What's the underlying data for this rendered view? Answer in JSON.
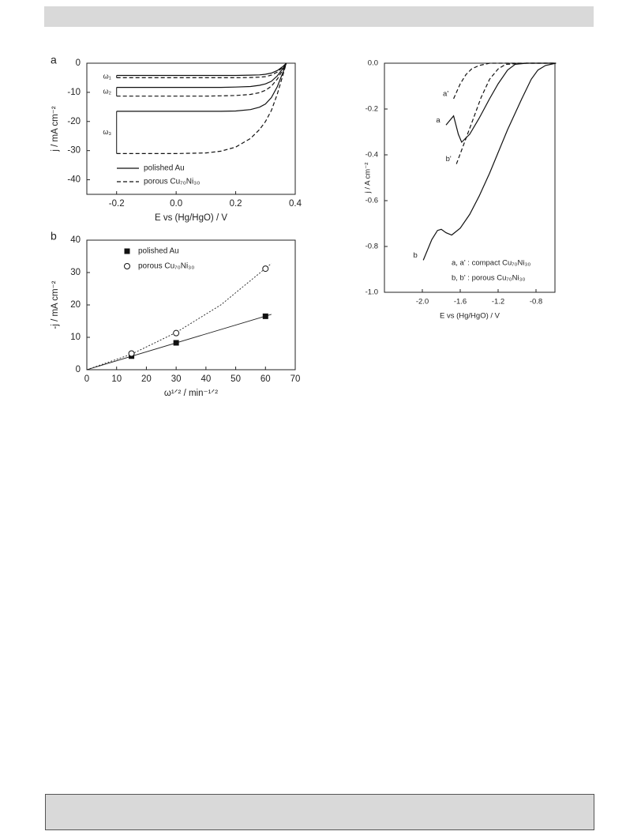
{
  "chart_data": [
    {
      "type": "line",
      "panel": "a",
      "xlabel": "E vs (Hg/HgO) / V",
      "ylabel": "j / mA cm⁻²",
      "xlim": [
        -0.3,
        0.4
      ],
      "xticks": [
        -0.2,
        {
          "value": 0,
          "label": "0.0"
        },
        0.2,
        0.4
      ],
      "ylim": [
        -45,
        0
      ],
      "yticks": [
        0,
        -10,
        -20,
        -30,
        -40
      ],
      "legend": [
        {
          "label": "polished Au",
          "dash": "solid"
        },
        {
          "label": "porous Cu₇₀Ni₃₀",
          "dash": "dashed"
        }
      ],
      "rotation_labels": [
        "ω₁",
        "ω₂",
        "ω₃"
      ],
      "x": [
        -0.2,
        -0.1,
        0.0,
        0.1,
        0.15,
        0.2,
        0.25,
        0.28,
        0.3,
        0.32,
        0.34,
        0.36,
        0.37
      ],
      "series": [
        {
          "legend": 0,
          "values": [
            -4.2,
            -4.2,
            -4.2,
            -4.2,
            -4.2,
            -4.2,
            -4.1,
            -4.0,
            -3.8,
            -3.4,
            -2.5,
            -1.0,
            0
          ]
        },
        {
          "legend": 0,
          "values": [
            -8.3,
            -8.3,
            -8.3,
            -8.3,
            -8.3,
            -8.2,
            -8.0,
            -7.6,
            -7.1,
            -6.2,
            -4.3,
            -1.6,
            0
          ]
        },
        {
          "legend": 0,
          "values": [
            -16.5,
            -16.5,
            -16.5,
            -16.5,
            -16.5,
            -16.4,
            -15.9,
            -15.1,
            -14.0,
            -11.8,
            -8.0,
            -2.8,
            0
          ]
        },
        {
          "legend": 1,
          "values": [
            -5.0,
            -5.0,
            -5.0,
            -5.0,
            -5.0,
            -5.0,
            -4.9,
            -4.8,
            -4.6,
            -4.1,
            -3.0,
            -1.2,
            0
          ]
        },
        {
          "legend": 1,
          "values": [
            -11.3,
            -11.3,
            -11.3,
            -11.3,
            -11.2,
            -11.1,
            -10.7,
            -10.1,
            -9.3,
            -7.9,
            -5.4,
            -2.0,
            0
          ]
        },
        {
          "legend": 1,
          "values": [
            -31,
            -31,
            -31,
            -30.8,
            -30.2,
            -28.8,
            -25.8,
            -22.8,
            -20.0,
            -16.2,
            -10.5,
            -3.6,
            0
          ]
        }
      ]
    },
    {
      "type": "scatter",
      "panel": "b",
      "xlabel": "ω¹ᐟ² / min⁻¹ᐟ²",
      "ylabel": "-j / mA cm⁻²",
      "xlim": [
        0,
        70
      ],
      "xticks": [
        0,
        10,
        20,
        30,
        40,
        50,
        60,
        70
      ],
      "ylim": [
        0,
        40
      ],
      "yticks": [
        0,
        10,
        20,
        30,
        40
      ],
      "series": [
        {
          "name": "polished Au",
          "marker": "filled-square",
          "x": [
            15,
            30,
            60
          ],
          "values": [
            4.2,
            8.3,
            16.5
          ],
          "fit": {
            "dash": "solid",
            "x": [
              0,
              62
            ],
            "values": [
              0,
              17.1
            ]
          }
        },
        {
          "name": "porous Cu₇₀Ni₃₀",
          "marker": "open-circle",
          "x": [
            15,
            30,
            60
          ],
          "values": [
            5.0,
            11.3,
            31.2
          ],
          "fit": {
            "dash": "dotted",
            "x": [
              0,
              15,
              30,
              45,
              62
            ],
            "values": [
              0,
              4.8,
              11.5,
              20.0,
              32.8
            ]
          }
        }
      ]
    },
    {
      "type": "line",
      "xlabel": "E vs (Hg/HgO) / V",
      "ylabel": "j / A cm⁻²",
      "xlim": [
        -2.4,
        -0.6
      ],
      "xticks": [
        {
          "value": -2,
          "label": "-2.0"
        },
        -1.6,
        -1.2,
        -0.8
      ],
      "ylim": [
        -1.0,
        0.0
      ],
      "yticks": [
        {
          "value": 0,
          "label": "0.0"
        },
        -0.2,
        -0.4,
        -0.6,
        -0.8,
        {
          "value": -1,
          "label": "-1.0"
        }
      ],
      "legend_notes": [
        "a, a' : compact Cu₇₀Ni₃₀",
        "b, b' : porous Cu₇₀Ni₃₀"
      ],
      "series": [
        {
          "name": "a",
          "dash": "solid",
          "x": [
            -1.75,
            -1.67,
            -1.62,
            -1.585,
            -1.5,
            -1.4,
            -1.29,
            -1.2,
            -1.1,
            -1.02,
            -0.9,
            -0.7,
            -0.59
          ],
          "values": [
            -0.27,
            -0.23,
            -0.31,
            -0.345,
            -0.31,
            -0.24,
            -0.155,
            -0.09,
            -0.03,
            -0.005,
            0,
            0,
            0
          ]
        },
        {
          "name": "a'",
          "dash": "dashed",
          "x": [
            -1.67,
            -1.6,
            -1.54,
            -1.48,
            -1.4,
            -1.29,
            -1.2,
            -0.59
          ],
          "values": [
            -0.155,
            -0.09,
            -0.05,
            -0.025,
            -0.01,
            0,
            0,
            0
          ]
        },
        {
          "name": "b'",
          "dash": "dashed",
          "x": [
            -1.64,
            -1.55,
            -1.46,
            -1.38,
            -1.29,
            -1.2,
            -1.12,
            -0.9,
            -0.59
          ],
          "values": [
            -0.44,
            -0.34,
            -0.24,
            -0.15,
            -0.07,
            -0.025,
            -0.005,
            0,
            0
          ]
        },
        {
          "name": "b",
          "dash": "solid",
          "x": [
            -1.99,
            -1.9,
            -1.84,
            -1.8,
            -1.75,
            -1.69,
            -1.6,
            -1.5,
            -1.4,
            -1.29,
            -1.2,
            -1.1,
            -0.95,
            -0.85,
            -0.78,
            -0.7,
            -0.59
          ],
          "values": [
            -0.86,
            -0.77,
            -0.73,
            -0.725,
            -0.74,
            -0.75,
            -0.72,
            -0.66,
            -0.58,
            -0.48,
            -0.39,
            -0.29,
            -0.155,
            -0.07,
            -0.03,
            -0.01,
            0
          ]
        }
      ]
    }
  ]
}
